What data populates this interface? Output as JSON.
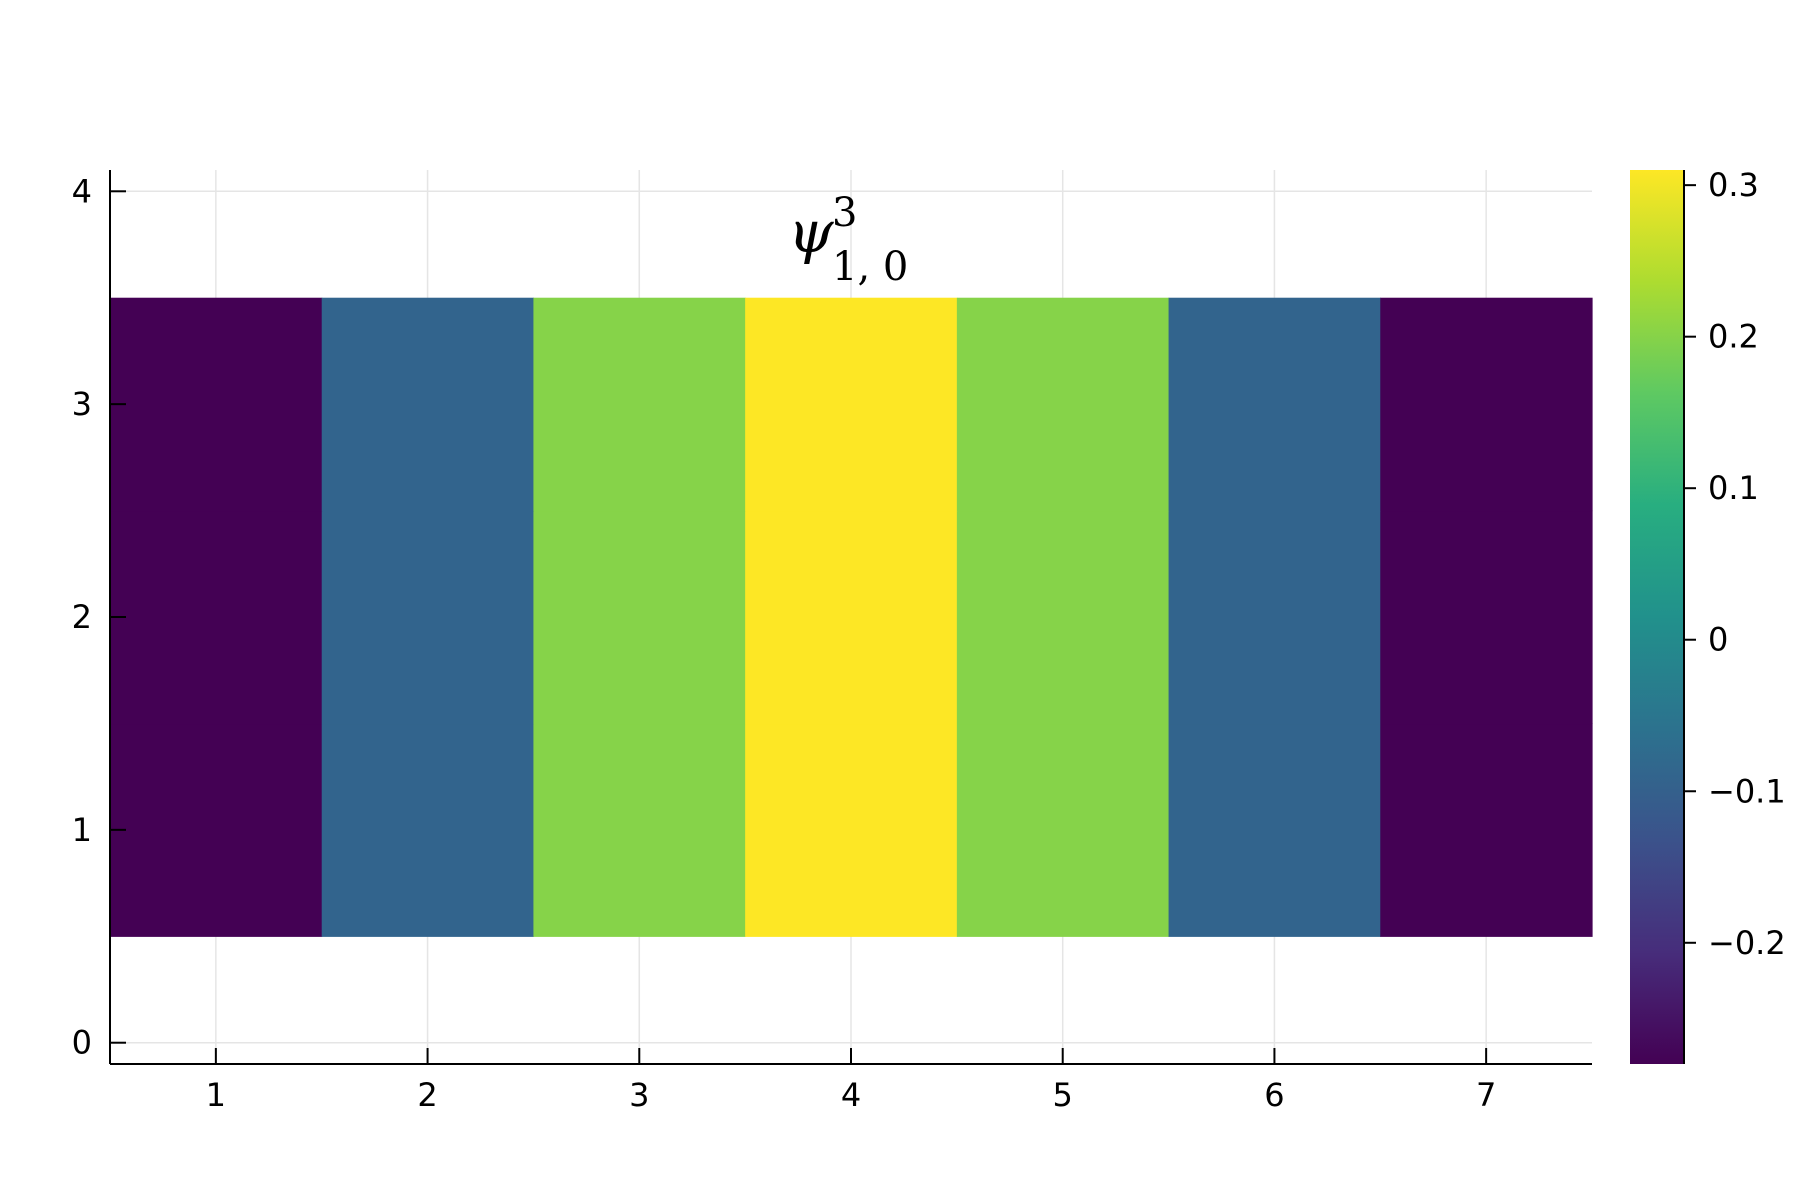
{
  "chart_data": {
    "type": "heatmap",
    "title": {
      "symbol": "ψ",
      "superscript": "3",
      "subscript": "1, 0"
    },
    "x": [
      1,
      2,
      3,
      4,
      5,
      6,
      7
    ],
    "y": [
      1,
      2,
      3
    ],
    "values": [
      [
        -0.28,
        -0.09,
        0.2,
        0.31,
        0.2,
        -0.09,
        -0.28
      ],
      [
        -0.28,
        -0.09,
        0.2,
        0.31,
        0.2,
        -0.09,
        -0.28
      ],
      [
        -0.28,
        -0.09,
        0.2,
        0.31,
        0.2,
        -0.09,
        -0.28
      ]
    ],
    "xlim": [
      0.5,
      7.5
    ],
    "ylim": [
      -0.1,
      4.1
    ],
    "xticks": [
      1,
      2,
      3,
      4,
      5,
      6,
      7
    ],
    "xtick_labels": [
      "1",
      "2",
      "3",
      "4",
      "5",
      "6",
      "7"
    ],
    "yticks": [
      0,
      1,
      2,
      3,
      4
    ],
    "ytick_labels": [
      "0",
      "1",
      "2",
      "3",
      "4"
    ],
    "xlabel": "",
    "ylabel": "",
    "grid": true,
    "colormap": "viridis",
    "colorbar": {
      "range": [
        -0.28,
        0.31
      ],
      "ticks": [
        -0.2,
        -0.1,
        0,
        0.1,
        0.2,
        0.3
      ],
      "tick_labels": [
        "−0.2",
        "−0.1",
        "0",
        "0.1",
        "0.2",
        "0.3"
      ],
      "placement": "right"
    }
  }
}
